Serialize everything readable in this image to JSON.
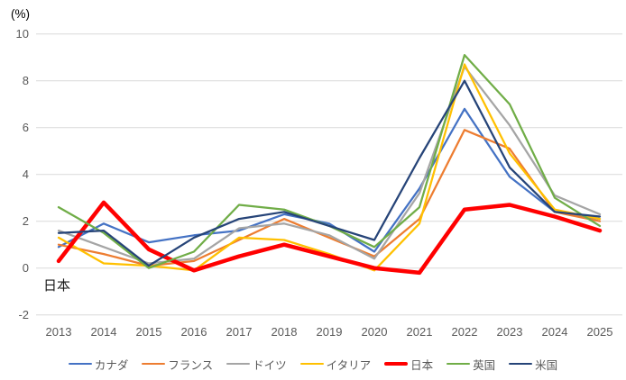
{
  "chart": {
    "percent_label": "(%)",
    "annotation": "日本",
    "y_ticks": [
      "10",
      "8",
      "6",
      "4",
      "2",
      "0",
      "-2"
    ],
    "y_tick_values": [
      10,
      8,
      6,
      4,
      2,
      0,
      -2
    ],
    "x_labels": [
      "2013",
      "2014",
      "2015",
      "2016",
      "2017",
      "2018",
      "2019",
      "2020",
      "2021",
      "2022",
      "2023",
      "2024",
      "2025"
    ],
    "grid_color": "#D9D9D9",
    "axis_text_color": "#595959",
    "annotation_color": "#1a1a1a"
  },
  "chart_data": {
    "type": "line",
    "title": "",
    "ylabel": "(%)",
    "ylim": [
      -2,
      10
    ],
    "grid": true,
    "legend_position": "bottom",
    "x": [
      2013,
      2014,
      2015,
      2016,
      2017,
      2018,
      2019,
      2020,
      2021,
      2022,
      2023,
      2024,
      2025
    ],
    "series": [
      {
        "key": "canada",
        "name": "カナダ",
        "color": "#4472C4",
        "line_width": 2.25,
        "values": [
          0.9,
          1.9,
          1.1,
          1.4,
          1.6,
          2.3,
          1.9,
          0.7,
          3.4,
          6.8,
          3.9,
          2.4,
          2.1
        ]
      },
      {
        "key": "france",
        "name": "フランス",
        "color": "#ED7D31",
        "line_width": 2.25,
        "values": [
          1.0,
          0.6,
          0.1,
          0.3,
          1.2,
          2.1,
          1.3,
          0.5,
          2.1,
          5.9,
          5.1,
          2.4,
          2.0
        ]
      },
      {
        "key": "germany",
        "name": "ドイツ",
        "color": "#A5A5A5",
        "line_width": 2.25,
        "values": [
          1.6,
          0.9,
          0.2,
          0.4,
          1.7,
          1.9,
          1.4,
          0.4,
          3.2,
          8.6,
          6.1,
          3.1,
          2.3
        ]
      },
      {
        "key": "italy",
        "name": "イタリア",
        "color": "#FFC000",
        "line_width": 2.25,
        "values": [
          1.3,
          0.2,
          0.1,
          -0.1,
          1.3,
          1.2,
          0.6,
          -0.1,
          1.9,
          8.7,
          4.9,
          2.5,
          2.1
        ]
      },
      {
        "key": "japan",
        "name": "日本",
        "color": "#FF0000",
        "line_width": 4.5,
        "values": [
          0.3,
          2.8,
          0.8,
          -0.1,
          0.5,
          1.0,
          0.5,
          0.0,
          -0.2,
          2.5,
          2.7,
          2.2,
          1.6
        ]
      },
      {
        "key": "uk",
        "name": "英国",
        "color": "#70AD47",
        "line_width": 2.25,
        "values": [
          2.6,
          1.5,
          0.0,
          0.7,
          2.7,
          2.5,
          1.8,
          0.9,
          2.6,
          9.1,
          7.0,
          3.0,
          1.8
        ]
      },
      {
        "key": "us",
        "name": "米国",
        "color": "#264478",
        "line_width": 2.25,
        "values": [
          1.5,
          1.6,
          0.1,
          1.3,
          2.1,
          2.4,
          1.8,
          1.2,
          4.7,
          8.0,
          4.3,
          2.4,
          2.2
        ]
      }
    ],
    "annotations": [
      {
        "text": "日本",
        "target_series": "japan",
        "x": 2013,
        "y": -0.6
      }
    ]
  }
}
